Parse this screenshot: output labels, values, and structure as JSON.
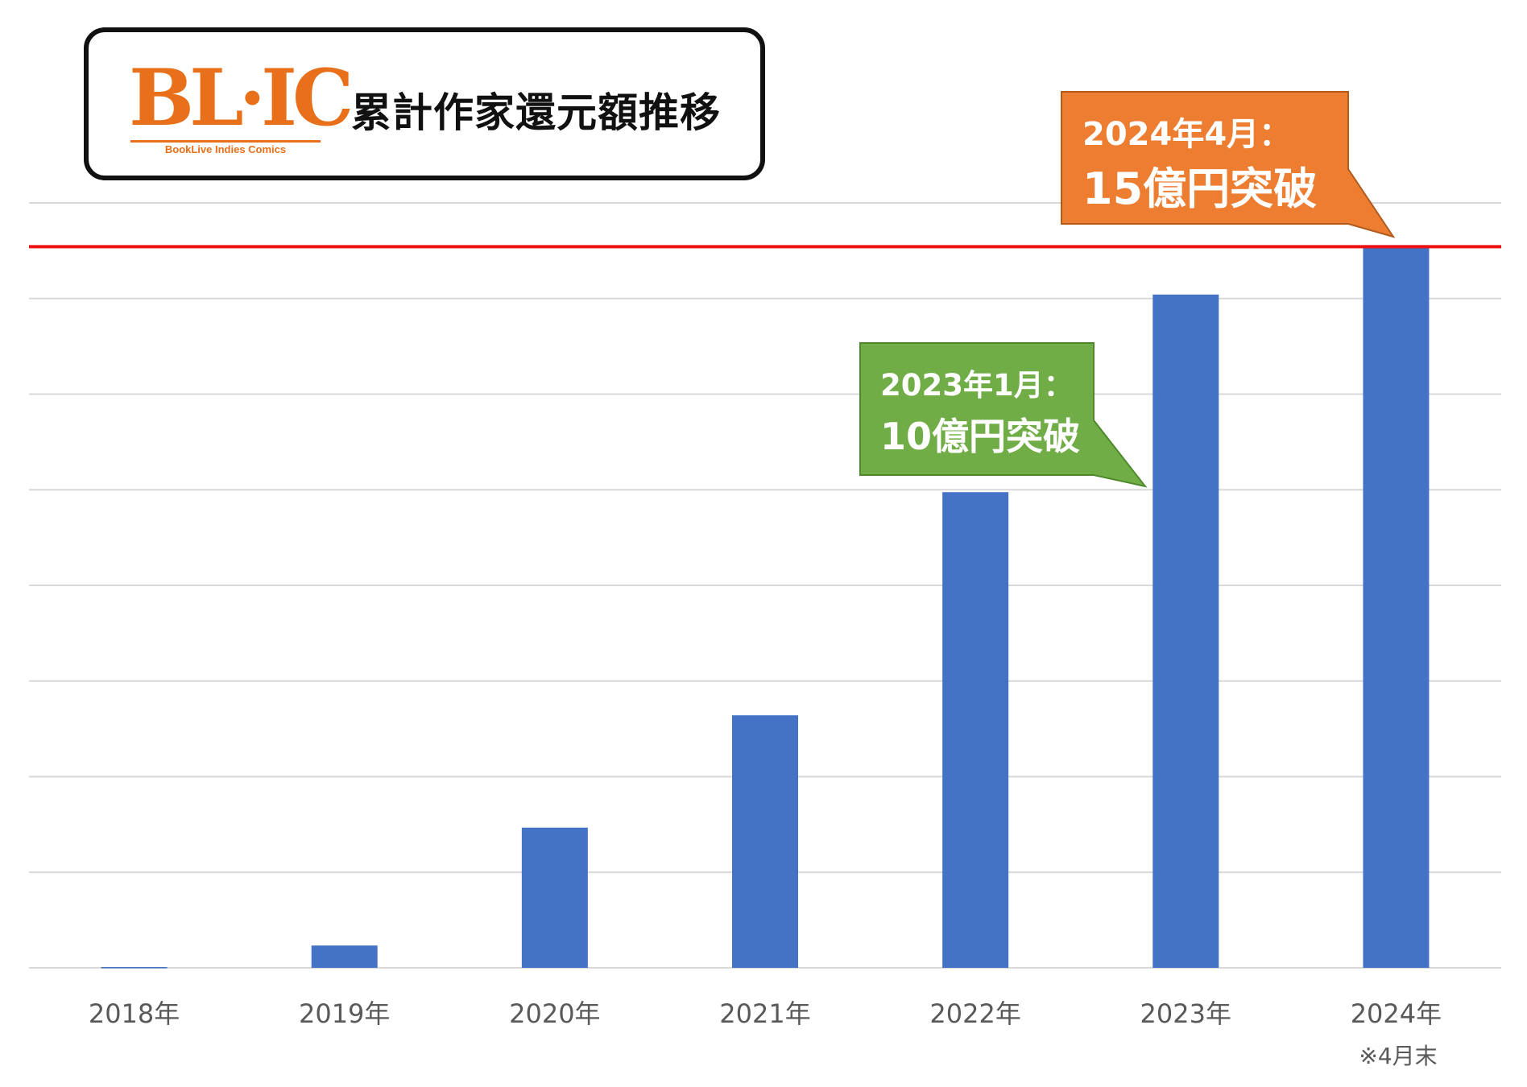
{
  "header": {
    "logo_text": "BL·IC",
    "logo_subtext": "BookLive Indies Comics",
    "title": "累計作家還元額推移"
  },
  "colors": {
    "bar": "#4472c4",
    "gridline": "#d9d9d9",
    "threshold_line": "#ee1111",
    "callout_orange": "#ed7d31",
    "callout_green": "#70ad47",
    "axis_label": "#595959"
  },
  "chart_data": {
    "type": "bar",
    "title": "累計作家還元額推移",
    "categories": [
      "2018年",
      "2019年",
      "2020年",
      "2021年",
      "2022年",
      "2023年",
      "2024年"
    ],
    "category_note": {
      "index": 6,
      "text": "※4月末"
    },
    "series": [
      {
        "values": [
          0.01,
          0.28,
          1.76,
          3.17,
          5.97,
          8.45,
          9.07
        ]
      }
    ],
    "ylim": [
      0,
      9.6
    ],
    "gridlines": 8,
    "y_axis_labels": false,
    "threshold_line_value": 9.05,
    "annotations": [
      {
        "category_index": 6,
        "line1": "2024年4月：",
        "line2": "15億円突破",
        "color": "orange"
      },
      {
        "category_index": 5,
        "line1": "2023年1月：",
        "line2": "10億円突破",
        "color": "green"
      }
    ],
    "grid": true,
    "legend": "none"
  }
}
